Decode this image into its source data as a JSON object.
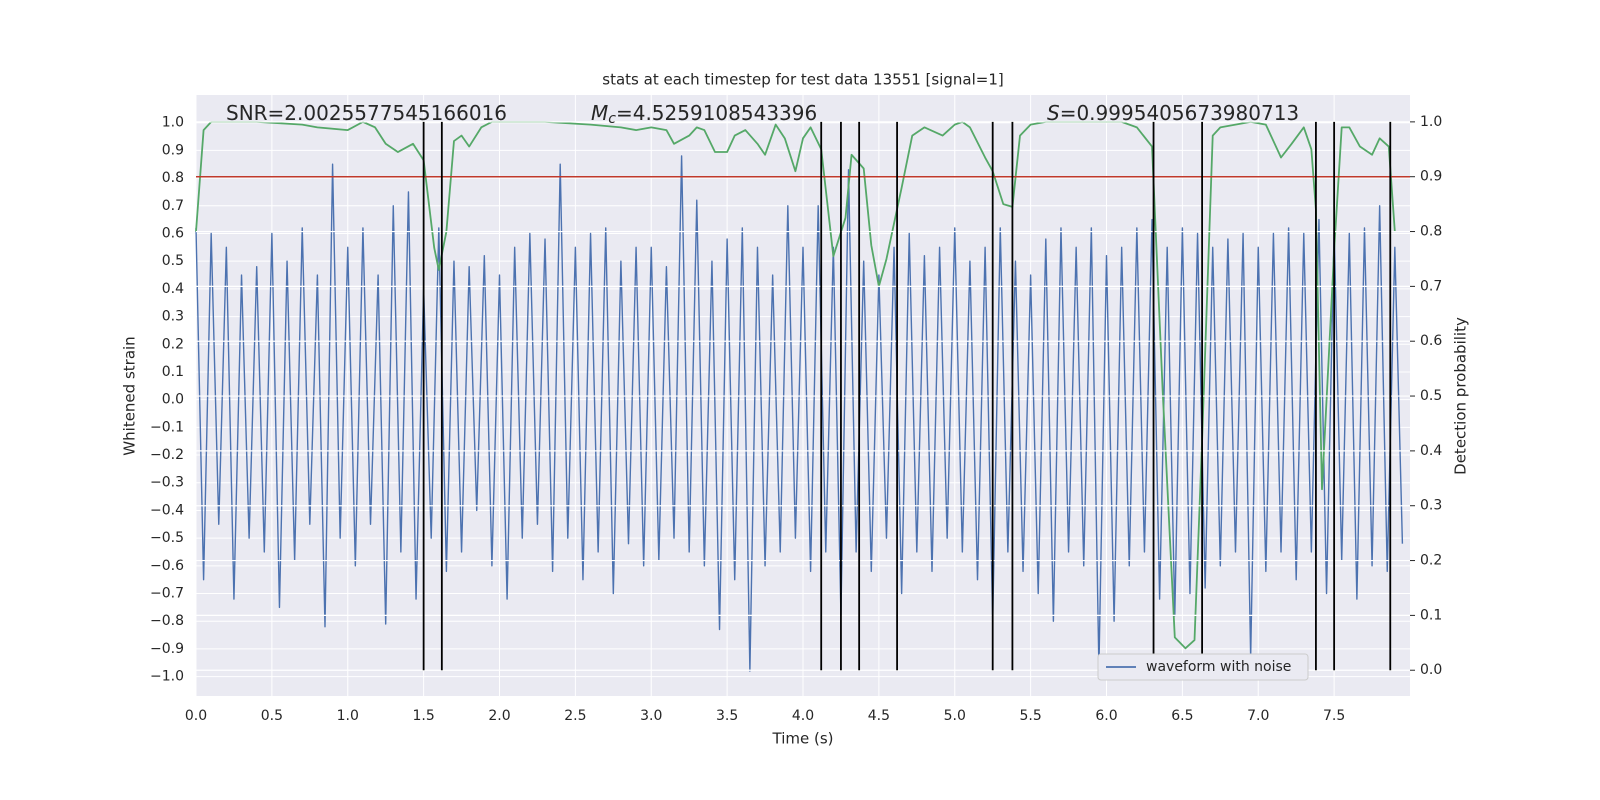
{
  "chart_data": {
    "type": "line",
    "title": "stats at each timestep for test data 13551 [signal=1]",
    "xlabel": "Time (s)",
    "ylabel": "Whitened strain",
    "y2label": "Detection probability",
    "xlim": [
      0,
      8.0
    ],
    "ylim": [
      -1.07,
      1.1
    ],
    "y2lim": [
      -0.047,
      1.049
    ],
    "grid": true,
    "legend": "lower right",
    "xticks": [
      {
        "value": 0,
        "label": "0.0"
      },
      {
        "value": 0.5,
        "label": "0.5"
      },
      {
        "value": 1,
        "label": "1.0"
      },
      {
        "value": 1.5,
        "label": "1.5"
      },
      {
        "value": 2,
        "label": "2.0"
      },
      {
        "value": 2.5,
        "label": "2.5"
      },
      {
        "value": 3,
        "label": "3.0"
      },
      {
        "value": 3.5,
        "label": "3.5"
      },
      {
        "value": 4,
        "label": "4.0"
      },
      {
        "value": 4.5,
        "label": "4.5"
      },
      {
        "value": 5,
        "label": "5.0"
      },
      {
        "value": 5.5,
        "label": "5.5"
      },
      {
        "value": 6,
        "label": "6.0"
      },
      {
        "value": 6.5,
        "label": "6.5"
      },
      {
        "value": 7,
        "label": "7.0"
      },
      {
        "value": 7.5,
        "label": "7.5"
      }
    ],
    "yticks": [
      {
        "value": -1,
        "label": "−1.0"
      },
      {
        "value": -0.9,
        "label": "−0.9"
      },
      {
        "value": -0.8,
        "label": "−0.8"
      },
      {
        "value": -0.7,
        "label": "−0.7"
      },
      {
        "value": -0.6,
        "label": "−0.6"
      },
      {
        "value": -0.5,
        "label": "−0.5"
      },
      {
        "value": -0.4,
        "label": "−0.4"
      },
      {
        "value": -0.3,
        "label": "−0.3"
      },
      {
        "value": -0.2,
        "label": "−0.2"
      },
      {
        "value": -0.1,
        "label": "−0.1"
      },
      {
        "value": 0,
        "label": "0.0"
      },
      {
        "value": 0.1,
        "label": "0.1"
      },
      {
        "value": 0.2,
        "label": "0.2"
      },
      {
        "value": 0.3,
        "label": "0.3"
      },
      {
        "value": 0.4,
        "label": "0.4"
      },
      {
        "value": 0.5,
        "label": "0.5"
      },
      {
        "value": 0.6,
        "label": "0.6"
      },
      {
        "value": 0.7,
        "label": "0.7"
      },
      {
        "value": 0.8,
        "label": "0.8"
      },
      {
        "value": 0.9,
        "label": "0.9"
      },
      {
        "value": 1,
        "label": "1.0"
      }
    ],
    "y2ticks": [
      {
        "value": 0,
        "label": "0.0"
      },
      {
        "value": 0.1,
        "label": "0.1"
      },
      {
        "value": 0.2,
        "label": "0.2"
      },
      {
        "value": 0.3,
        "label": "0.3"
      },
      {
        "value": 0.4,
        "label": "0.4"
      },
      {
        "value": 0.5,
        "label": "0.5"
      },
      {
        "value": 0.6,
        "label": "0.6"
      },
      {
        "value": 0.7,
        "label": "0.7"
      },
      {
        "value": 0.8,
        "label": "0.8"
      },
      {
        "value": 0.9,
        "label": "0.9"
      },
      {
        "value": 1,
        "label": "1.0"
      }
    ],
    "annotations": [
      {
        "text": "SNR=2.0025577545166016"
      },
      {
        "symbol": "M",
        "subscript": "c",
        "text": "=4.5259108543396"
      },
      {
        "symbol": "S",
        "text": "=0.9995405673980713"
      }
    ],
    "threshold": {
      "value": 0.9,
      "axis": "y2",
      "color": "#c0392b"
    },
    "detections": {
      "x": [
        1.5,
        1.62,
        4.12,
        4.25,
        4.37,
        4.62,
        5.25,
        5.38,
        6.31,
        6.63,
        7.38,
        7.5,
        7.87
      ],
      "ymin": 0,
      "ymax": 1,
      "axis": "y2",
      "color": "#000000"
    },
    "series": [
      {
        "name": "waveform with noise",
        "color": "#4c72b0",
        "x": [
          0,
          0.05,
          0.1,
          0.15,
          0.2,
          0.25,
          0.3,
          0.35,
          0.4,
          0.45,
          0.5,
          0.55,
          0.6,
          0.65,
          0.7,
          0.75,
          0.8,
          0.85,
          0.9,
          0.95,
          1.0,
          1.05,
          1.1,
          1.15,
          1.2,
          1.25,
          1.3,
          1.35,
          1.4,
          1.45,
          1.5,
          1.55,
          1.6,
          1.65,
          1.7,
          1.75,
          1.8,
          1.85,
          1.9,
          1.95,
          2.0,
          2.05,
          2.1,
          2.15,
          2.2,
          2.25,
          2.3,
          2.35,
          2.4,
          2.45,
          2.5,
          2.55,
          2.6,
          2.65,
          2.7,
          2.75,
          2.8,
          2.85,
          2.9,
          2.95,
          3.0,
          3.05,
          3.1,
          3.15,
          3.2,
          3.25,
          3.3,
          3.35,
          3.4,
          3.45,
          3.5,
          3.55,
          3.6,
          3.65,
          3.7,
          3.75,
          3.8,
          3.85,
          3.9,
          3.95,
          4.0,
          4.05,
          4.1,
          4.15,
          4.2,
          4.25,
          4.3,
          4.35,
          4.4,
          4.45,
          4.5,
          4.55,
          4.6,
          4.65,
          4.7,
          4.75,
          4.8,
          4.85,
          4.9,
          4.95,
          5.0,
          5.05,
          5.1,
          5.15,
          5.2,
          5.25,
          5.3,
          5.35,
          5.4,
          5.45,
          5.5,
          5.55,
          5.6,
          5.65,
          5.7,
          5.75,
          5.8,
          5.85,
          5.9,
          5.95,
          6.0,
          6.05,
          6.1,
          6.15,
          6.2,
          6.25,
          6.3,
          6.35,
          6.4,
          6.45,
          6.5,
          6.55,
          6.6,
          6.65,
          6.7,
          6.75,
          6.8,
          6.85,
          6.9,
          6.95,
          7.0,
          7.05,
          7.1,
          7.15,
          7.2,
          7.25,
          7.3,
          7.35,
          7.4,
          7.45,
          7.5,
          7.55,
          7.6,
          7.65,
          7.7,
          7.75,
          7.8,
          7.85,
          7.9,
          7.95
        ],
        "values": [
          0.62,
          -0.65,
          0.6,
          -0.45,
          0.55,
          -0.72,
          0.45,
          -0.5,
          0.48,
          -0.55,
          0.6,
          -0.75,
          0.5,
          -0.58,
          0.62,
          -0.45,
          0.45,
          -0.82,
          0.85,
          -0.5,
          0.55,
          -0.6,
          0.62,
          -0.45,
          0.45,
          -0.81,
          0.7,
          -0.55,
          0.75,
          -0.72,
          0.4,
          -0.5,
          0.62,
          -0.62,
          0.5,
          -0.55,
          0.48,
          -0.4,
          0.52,
          -0.6,
          0.45,
          -0.72,
          0.55,
          -0.5,
          0.6,
          -0.45,
          0.58,
          -0.62,
          0.85,
          -0.5,
          0.55,
          -0.65,
          0.6,
          -0.55,
          0.62,
          -0.7,
          0.5,
          -0.52,
          0.55,
          -0.6,
          0.55,
          -0.58,
          0.48,
          -0.5,
          0.88,
          -0.55,
          0.72,
          -0.6,
          0.5,
          -0.83,
          0.58,
          -0.65,
          0.62,
          -0.98,
          0.55,
          -0.6,
          0.45,
          -0.55,
          0.7,
          -0.5,
          0.55,
          -0.62,
          0.7,
          -0.55,
          0.55,
          -0.78,
          0.83,
          -0.55,
          0.5,
          -0.62,
          0.45,
          -0.5,
          0.55,
          -0.7,
          0.6,
          -0.55,
          0.52,
          -0.62,
          0.55,
          -0.5,
          0.62,
          -0.55,
          0.5,
          -0.65,
          0.55,
          -0.8,
          0.62,
          -0.55,
          0.5,
          -0.62,
          0.45,
          -0.7,
          0.58,
          -0.8,
          0.62,
          -0.55,
          0.55,
          -0.6,
          0.62,
          -0.97,
          0.52,
          -0.8,
          0.55,
          -0.6,
          0.62,
          -0.55,
          0.65,
          -0.72,
          0.55,
          -0.78,
          0.62,
          -0.7,
          0.6,
          -0.68,
          0.55,
          -0.6,
          0.58,
          -0.55,
          0.6,
          -0.93,
          0.55,
          -0.62,
          0.6,
          -0.55,
          0.62,
          -0.65,
          0.6,
          -0.55,
          0.65,
          -0.7,
          0.62,
          -0.58,
          0.6,
          -0.72,
          0.62,
          -0.6,
          0.7,
          -0.62,
          0.55,
          -0.52
        ]
      },
      {
        "color": "#55a868",
        "axis": "y2",
        "x": [
          0.0,
          0.05,
          0.1,
          0.4,
          0.7,
          0.8,
          1.0,
          1.1,
          1.18,
          1.25,
          1.33,
          1.43,
          1.5,
          1.57,
          1.6,
          1.65,
          1.7,
          1.75,
          1.8,
          1.88,
          1.95,
          2.3,
          2.6,
          2.8,
          2.9,
          3.0,
          3.1,
          3.15,
          3.25,
          3.3,
          3.35,
          3.42,
          3.5,
          3.55,
          3.62,
          3.7,
          3.75,
          3.82,
          3.88,
          3.95,
          4.0,
          4.05,
          4.12,
          4.2,
          4.28,
          4.32,
          4.4,
          4.45,
          4.5,
          4.55,
          4.65,
          4.72,
          4.8,
          4.92,
          5.0,
          5.05,
          5.1,
          5.2,
          5.25,
          5.32,
          5.38,
          5.43,
          5.5,
          5.6,
          6.1,
          6.2,
          6.3,
          6.37,
          6.45,
          6.52,
          6.58,
          6.63,
          6.7,
          6.75,
          6.85,
          6.95,
          7.05,
          7.15,
          7.22,
          7.3,
          7.35,
          7.38,
          7.42,
          7.47,
          7.5,
          7.55,
          7.6,
          7.67,
          7.75,
          7.8,
          7.86,
          7.9
        ],
        "values": [
          0.8,
          0.985,
          1.0,
          1.0,
          0.995,
          0.99,
          0.985,
          1.0,
          0.99,
          0.96,
          0.945,
          0.96,
          0.93,
          0.77,
          0.73,
          0.8,
          0.965,
          0.975,
          0.955,
          0.99,
          1.0,
          1.0,
          0.995,
          0.99,
          0.985,
          0.99,
          0.985,
          0.96,
          0.975,
          0.99,
          0.985,
          0.945,
          0.945,
          0.975,
          0.985,
          0.96,
          0.94,
          0.995,
          0.97,
          0.91,
          0.97,
          0.99,
          0.95,
          0.755,
          0.825,
          0.94,
          0.915,
          0.775,
          0.7,
          0.75,
          0.88,
          0.975,
          0.99,
          0.975,
          0.995,
          1.0,
          0.99,
          0.935,
          0.91,
          0.85,
          0.845,
          0.975,
          0.995,
          1.0,
          1.0,
          0.99,
          0.955,
          0.51,
          0.06,
          0.04,
          0.055,
          0.42,
          0.975,
          0.99,
          0.995,
          1.0,
          0.995,
          0.935,
          0.96,
          0.99,
          0.95,
          0.84,
          0.33,
          0.6,
          0.765,
          0.99,
          0.99,
          0.955,
          0.94,
          0.97,
          0.955,
          0.8
        ]
      }
    ]
  }
}
